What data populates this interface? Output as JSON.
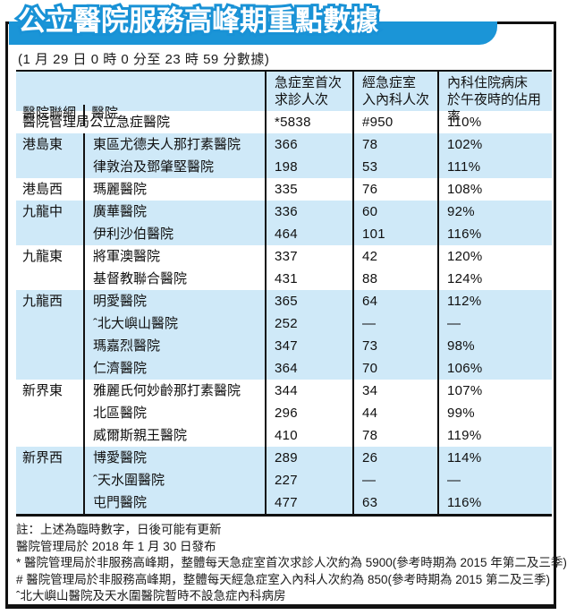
{
  "title": "公立醫院服務高峰期重點數據",
  "subtitle": "(1 月 29 日 0 時 0 分至 23 時 59 分數據)",
  "colors": {
    "banner_blue": "#1b95d7",
    "row_tint_blue": "#cfe9f8",
    "line_black": "#111111",
    "title_fill": "#ffffff"
  },
  "header_labels": {
    "cluster": "醫院聯網",
    "hospital": "醫院",
    "ae_line1": "急症室首次",
    "ae_line2": "求診人次",
    "adm_line1": "經急症室",
    "adm_line2": "入內科人次",
    "occ_line1": "內科住院病床",
    "occ_line2": "於午夜時的佔用率"
  },
  "chart_data": {
    "type": "table",
    "title": "公立醫院服務高峰期重點數據",
    "subtitle": "(1 月 29 日 0 時 0 分至 23 時 59 分數據)",
    "columns": [
      "醫院聯網",
      "醫院",
      "急症室首次求診人次",
      "經急症室入內科人次",
      "內科住院病床於午夜時的佔用率"
    ],
    "summary_row": {
      "label": "醫院管理局公立急症醫院",
      "ae_first": "*5838",
      "med_adm": "#950",
      "occupancy": "110%"
    },
    "groups": [
      {
        "cluster": "港島東",
        "shaded": true,
        "rows": [
          {
            "hospital": "東區尤德夫人那打素醫院",
            "ae_first": "366",
            "med_adm": "78",
            "occupancy": "102%"
          },
          {
            "hospital": "律敦治及鄧肇堅醫院",
            "ae_first": "198",
            "med_adm": "53",
            "occupancy": "111%"
          }
        ]
      },
      {
        "cluster": "港島西",
        "shaded": false,
        "rows": [
          {
            "hospital": "瑪麗醫院",
            "ae_first": "335",
            "med_adm": "76",
            "occupancy": "108%"
          }
        ]
      },
      {
        "cluster": "九龍中",
        "shaded": true,
        "rows": [
          {
            "hospital": "廣華醫院",
            "ae_first": "336",
            "med_adm": "60",
            "occupancy": "92%"
          },
          {
            "hospital": "伊利沙伯醫院",
            "ae_first": "464",
            "med_adm": "101",
            "occupancy": "116%"
          }
        ]
      },
      {
        "cluster": "九龍東",
        "shaded": false,
        "rows": [
          {
            "hospital": "將軍澳醫院",
            "ae_first": "337",
            "med_adm": "42",
            "occupancy": "120%"
          },
          {
            "hospital": "基督教聯合醫院",
            "ae_first": "431",
            "med_adm": "88",
            "occupancy": "124%"
          }
        ]
      },
      {
        "cluster": "九龍西",
        "shaded": true,
        "rows": [
          {
            "hospital": "明愛醫院",
            "ae_first": "365",
            "med_adm": "64",
            "occupancy": "112%"
          },
          {
            "hospital": "ˆ北大嶼山醫院",
            "ae_first": "252",
            "med_adm": "—",
            "occupancy": "—"
          },
          {
            "hospital": "瑪嘉烈醫院",
            "ae_first": "347",
            "med_adm": "73",
            "occupancy": "98%"
          },
          {
            "hospital": "仁濟醫院",
            "ae_first": "364",
            "med_adm": "70",
            "occupancy": "106%"
          }
        ]
      },
      {
        "cluster": "新界東",
        "shaded": false,
        "rows": [
          {
            "hospital": "雅麗氏何妙齡那打素醫院",
            "ae_first": "344",
            "med_adm": "34",
            "occupancy": "107%"
          },
          {
            "hospital": "北區醫院",
            "ae_first": "296",
            "med_adm": "44",
            "occupancy": "99%"
          },
          {
            "hospital": "威爾斯親王醫院",
            "ae_first": "410",
            "med_adm": "78",
            "occupancy": "119%"
          }
        ]
      },
      {
        "cluster": "新界西",
        "shaded": true,
        "rows": [
          {
            "hospital": "博愛醫院",
            "ae_first": "289",
            "med_adm": "26",
            "occupancy": "114%"
          },
          {
            "hospital": "ˆ天水圍醫院",
            "ae_first": "227",
            "med_adm": "—",
            "occupancy": "—"
          },
          {
            "hospital": "屯門醫院",
            "ae_first": "477",
            "med_adm": "63",
            "occupancy": "116%"
          }
        ]
      }
    ],
    "notes": [
      "註：上述為臨時數字，日後可能有更新",
      "醫院管理局於 2018 年 1 月 30 日發布",
      "* 醫院管理局於非服務高峰期，整體每天急症室首次求診人次約為 5900(參考時期為 2015 年第二及三季)",
      "# 醫院管理局於非服務高峰期，整體每天經急症室入內科人次約為 850(參考時期為 2015 第二及三季)",
      "ˆ北大嶼山醫院及天水圍醫院暫時不設急症內科病房"
    ]
  }
}
